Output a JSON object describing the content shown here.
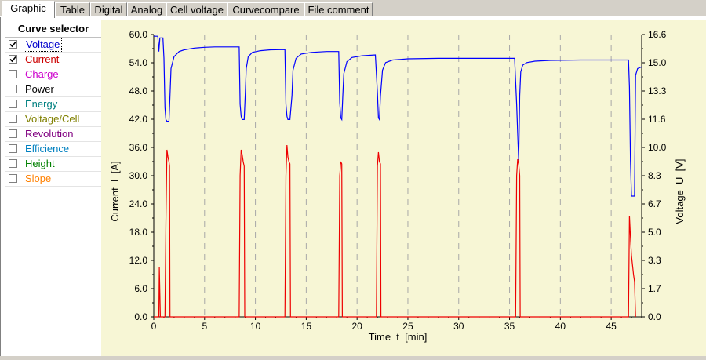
{
  "tabs": [
    {
      "label": "Graphic",
      "active": true
    },
    {
      "label": "Table",
      "active": false
    },
    {
      "label": "Digital",
      "active": false
    },
    {
      "label": "Analog",
      "active": false
    },
    {
      "label": "Cell voltage",
      "active": false
    },
    {
      "label": "Curvecompare",
      "active": false
    },
    {
      "label": "File comment",
      "active": false
    }
  ],
  "sidebar": {
    "title": "Curve selector",
    "items": [
      {
        "label": "Voltage",
        "checked": true,
        "color": "#0000cc"
      },
      {
        "label": "Current",
        "checked": true,
        "color": "#cc0000"
      },
      {
        "label": "Charge",
        "checked": false,
        "color": "#cc00cc"
      },
      {
        "label": "Power",
        "checked": false,
        "color": "#000000"
      },
      {
        "label": "Energy",
        "checked": false,
        "color": "#008080"
      },
      {
        "label": "Voltage/Cell",
        "checked": false,
        "color": "#808000"
      },
      {
        "label": "Revolution",
        "checked": false,
        "color": "#800080"
      },
      {
        "label": "Efficience",
        "checked": false,
        "color": "#0080c0"
      },
      {
        "label": "Height",
        "checked": false,
        "color": "#008000"
      },
      {
        "label": "Slope",
        "checked": false,
        "color": "#ff8000"
      }
    ]
  },
  "chart_data": {
    "type": "line",
    "xlabel": "Time  t  [min]",
    "ylabel_left": "Current  I  [A]",
    "ylabel_right": "Voltage  U  [V]",
    "xlim": [
      0,
      48
    ],
    "ylim_left": [
      0,
      60
    ],
    "ylim_right": [
      0,
      16.6
    ],
    "x_ticks": [
      "0",
      "5",
      "10",
      "15",
      "20",
      "25",
      "30",
      "35",
      "40",
      "45"
    ],
    "y_ticks_left": [
      "0.0",
      "6.0",
      "12.0",
      "18.0",
      "24.0",
      "30.0",
      "36.0",
      "42.0",
      "48.0",
      "54.0",
      "60.0"
    ],
    "y_ticks_right": [
      "0.0",
      "1.7",
      "3.3",
      "5.0",
      "6.7",
      "8.3",
      "10.0",
      "11.6",
      "13.3",
      "15.0",
      "16.6"
    ],
    "grid": "vertical dashed",
    "series": [
      {
        "name": "Voltage",
        "axis": "right",
        "color": "#0000ff",
        "x": [
          0,
          0.4,
          0.5,
          0.6,
          0.9,
          1.0,
          1.1,
          1.2,
          1.3,
          1.5,
          1.6,
          1.7,
          2.0,
          2.5,
          3.0,
          4.0,
          5.0,
          6.0,
          8.0,
          8.4,
          8.5,
          8.6,
          8.7,
          8.9,
          9.0,
          9.1,
          9.3,
          9.7,
          10.5,
          11.5,
          12.9,
          13.0,
          13.1,
          13.2,
          13.4,
          13.6,
          13.7,
          14.0,
          14.5,
          15.5,
          17.0,
          18.2,
          18.3,
          18.4,
          18.5,
          18.6,
          18.7,
          19.0,
          19.5,
          20.5,
          21.8,
          22.0,
          22.1,
          22.2,
          22.3,
          22.5,
          22.8,
          23.5,
          25.0,
          28.0,
          32.0,
          35.5,
          35.7,
          35.8,
          35.9,
          36.0,
          36.1,
          36.3,
          36.7,
          37.5,
          39.0,
          42.0,
          46.7,
          46.8,
          46.9,
          47.0,
          47.3,
          47.4,
          47.6,
          48.0
        ],
        "values": [
          16.5,
          16.5,
          15.6,
          16.4,
          16.4,
          15.2,
          12.3,
          11.6,
          11.5,
          11.5,
          13.0,
          14.6,
          15.3,
          15.6,
          15.7,
          15.8,
          15.85,
          15.87,
          15.87,
          15.87,
          12.5,
          11.8,
          11.6,
          11.6,
          13.0,
          14.6,
          15.3,
          15.55,
          15.65,
          15.7,
          15.72,
          12.5,
          11.8,
          11.6,
          11.6,
          13.0,
          14.5,
          15.2,
          15.45,
          15.55,
          15.6,
          15.6,
          12.6,
          11.7,
          11.6,
          13.0,
          14.3,
          15.0,
          15.25,
          15.35,
          15.4,
          13.2,
          11.7,
          11.6,
          13.0,
          14.5,
          14.95,
          15.1,
          15.17,
          15.2,
          15.2,
          15.2,
          12.5,
          10.8,
          9.2,
          13.0,
          14.4,
          14.8,
          14.95,
          15.03,
          15.08,
          15.1,
          15.1,
          13.5,
          9.2,
          7.1,
          7.1,
          14.2,
          14.6,
          14.7
        ]
      },
      {
        "name": "Current",
        "axis": "left",
        "color": "#ee0000",
        "x": [
          0,
          0.5,
          0.55,
          0.6,
          0.65,
          0.7,
          0.9,
          1.1,
          1.2,
          1.3,
          1.4,
          1.5,
          1.55,
          1.6,
          8.4,
          8.5,
          8.6,
          8.7,
          8.8,
          8.9,
          8.95,
          9.0,
          12.9,
          13.0,
          13.1,
          13.2,
          13.3,
          13.4,
          13.45,
          13.5,
          18.2,
          18.3,
          18.4,
          18.5,
          18.55,
          18.6,
          21.9,
          22.0,
          22.1,
          22.2,
          22.3,
          22.35,
          22.4,
          35.6,
          35.7,
          35.8,
          35.9,
          36.0,
          36.05,
          36.1,
          46.7,
          46.8,
          46.9,
          47.0,
          47.2,
          47.3,
          47.4
        ],
        "values": [
          0,
          0,
          10.5,
          5.0,
          0,
          0,
          0,
          0,
          20.0,
          35.5,
          34.0,
          33.0,
          32.0,
          0,
          0,
          30.0,
          35.5,
          34.5,
          33.0,
          32.0,
          0,
          0,
          0,
          30.0,
          36.5,
          34.0,
          33.0,
          32.5,
          0,
          0,
          0,
          30.0,
          33.0,
          32.5,
          0,
          0,
          0,
          32.0,
          35.0,
          33.0,
          32.5,
          0,
          0,
          0,
          30.0,
          33.5,
          32.5,
          30.0,
          0,
          0,
          0,
          21.5,
          17.0,
          13.0,
          9.0,
          7.5,
          0
        ]
      }
    ]
  }
}
